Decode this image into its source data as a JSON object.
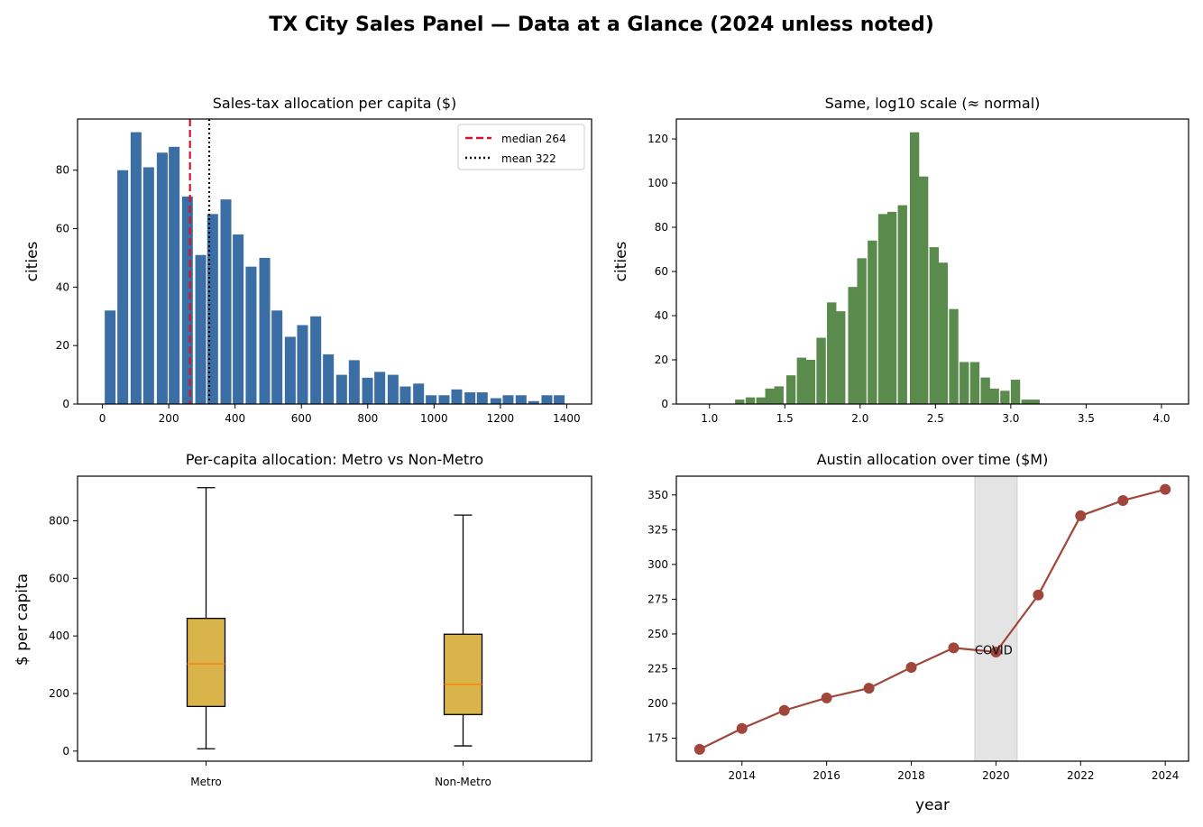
{
  "figure": {
    "title": "TX City Sales Panel — Data at a Glance (2024 unless noted)"
  },
  "chart_data": [
    {
      "type": "bar",
      "title": "Sales-tax allocation per capita ($)",
      "xlabel": "",
      "ylabel": "cities",
      "xlim": [
        -75,
        1475
      ],
      "ylim": [
        0,
        97.5
      ],
      "xticks": [
        0,
        200,
        400,
        600,
        800,
        1000,
        1200,
        1400
      ],
      "yticks": [
        0,
        20,
        40,
        60,
        80
      ],
      "bin_width": 32.7,
      "bin_starts": [
        7,
        45,
        85,
        123,
        164,
        200,
        240,
        280,
        316,
        356,
        393,
        432,
        473,
        510,
        550,
        587,
        627,
        665,
        705,
        743,
        783,
        820,
        860,
        897,
        937,
        975,
        1014,
        1052,
        1092,
        1129,
        1170,
        1207,
        1246,
        1284,
        1324,
        1361
      ],
      "values": [
        32,
        80,
        93,
        81,
        86,
        88,
        71,
        51,
        65,
        70,
        58,
        47,
        50,
        32,
        23,
        27,
        30,
        17,
        10,
        15,
        9,
        11,
        10,
        6,
        7,
        3,
        3,
        5,
        4,
        4,
        2,
        3,
        3,
        1,
        3,
        3
      ],
      "grid": false,
      "legend_position": "top-right",
      "lines": [
        {
          "name": "median 264",
          "x": 264,
          "style": "dashed",
          "color": "#d0142c"
        },
        {
          "name": "mean 322",
          "x": 322,
          "style": "dotted",
          "color": "#000000"
        }
      ],
      "colors": {
        "bar": "#3a6ea5"
      }
    },
    {
      "type": "bar",
      "title": "Same, log10 scale (≈ normal)",
      "xlabel": "",
      "ylabel": "cities",
      "xlim": [
        0.78,
        4.18
      ],
      "ylim": [
        0,
        129
      ],
      "xticks": [
        "1.0",
        "1.5",
        "2.0",
        "2.5",
        "3.0",
        "3.5",
        "4.0"
      ],
      "yticks": [
        0,
        20,
        40,
        60,
        80,
        100,
        120
      ],
      "bin_width": 0.062,
      "bin_starts": [
        1.17,
        1.24,
        1.31,
        1.37,
        1.43,
        1.51,
        1.58,
        1.64,
        1.71,
        1.78,
        1.84,
        1.92,
        1.98,
        2.05,
        2.12,
        2.18,
        2.25,
        2.33,
        2.39,
        2.46,
        2.52,
        2.59,
        2.66,
        2.73,
        2.8,
        2.86,
        2.93,
        3.0,
        3.07,
        3.13,
        3.2,
        3.27,
        3.33,
        3.71,
        3.79
      ],
      "values": [
        2,
        3,
        3,
        7,
        8,
        13,
        21,
        20,
        30,
        46,
        42,
        53,
        66,
        74,
        86,
        87,
        90,
        123,
        103,
        71,
        64,
        43,
        19,
        19,
        12,
        7,
        6,
        11,
        2,
        2,
        0,
        0,
        0,
        0,
        0
      ],
      "grid": false,
      "colors": {
        "bar": "#5a8a4c"
      }
    },
    {
      "type": "box",
      "title": "Per-capita allocation: Metro vs Non-Metro",
      "xlabel": "",
      "ylabel": "$ per capita",
      "categories": [
        "Metro",
        "Non-Metro"
      ],
      "ylim": [
        -35,
        955
      ],
      "yticks": [
        0,
        200,
        400,
        600,
        800
      ],
      "boxes": [
        {
          "name": "Metro",
          "whisker_low": 8,
          "q1": 155,
          "median": 303,
          "q3": 461,
          "whisker_high": 915
        },
        {
          "name": "Non-Metro",
          "whisker_low": 18,
          "q1": 127,
          "median": 232,
          "q3": 406,
          "whisker_high": 820
        }
      ],
      "grid": false,
      "colors": {
        "box": "#d8b44a",
        "median": "#ff7f0e"
      }
    },
    {
      "type": "line",
      "title": "Austin allocation over time ($M)",
      "xlabel": "year",
      "ylabel": "",
      "x": [
        2013,
        2014,
        2015,
        2016,
        2017,
        2018,
        2019,
        2020,
        2021,
        2022,
        2023,
        2024
      ],
      "y": [
        167,
        182,
        195,
        204,
        211,
        226,
        240,
        237,
        278,
        335,
        346,
        354
      ],
      "xlim": [
        2012.45,
        2024.55
      ],
      "ylim": [
        158.5,
        363.5
      ],
      "xticks": [
        2014,
        2016,
        2018,
        2020,
        2022,
        2024
      ],
      "yticks": [
        175,
        200,
        225,
        250,
        275,
        300,
        325,
        350
      ],
      "shaded_span": [
        2019.5,
        2020.5
      ],
      "annotation": {
        "text": "COVID",
        "x": 2019.5,
        "y": 238
      },
      "grid": false,
      "colors": {
        "line": "#a0463a",
        "span": "#e4e4e4"
      }
    }
  ]
}
